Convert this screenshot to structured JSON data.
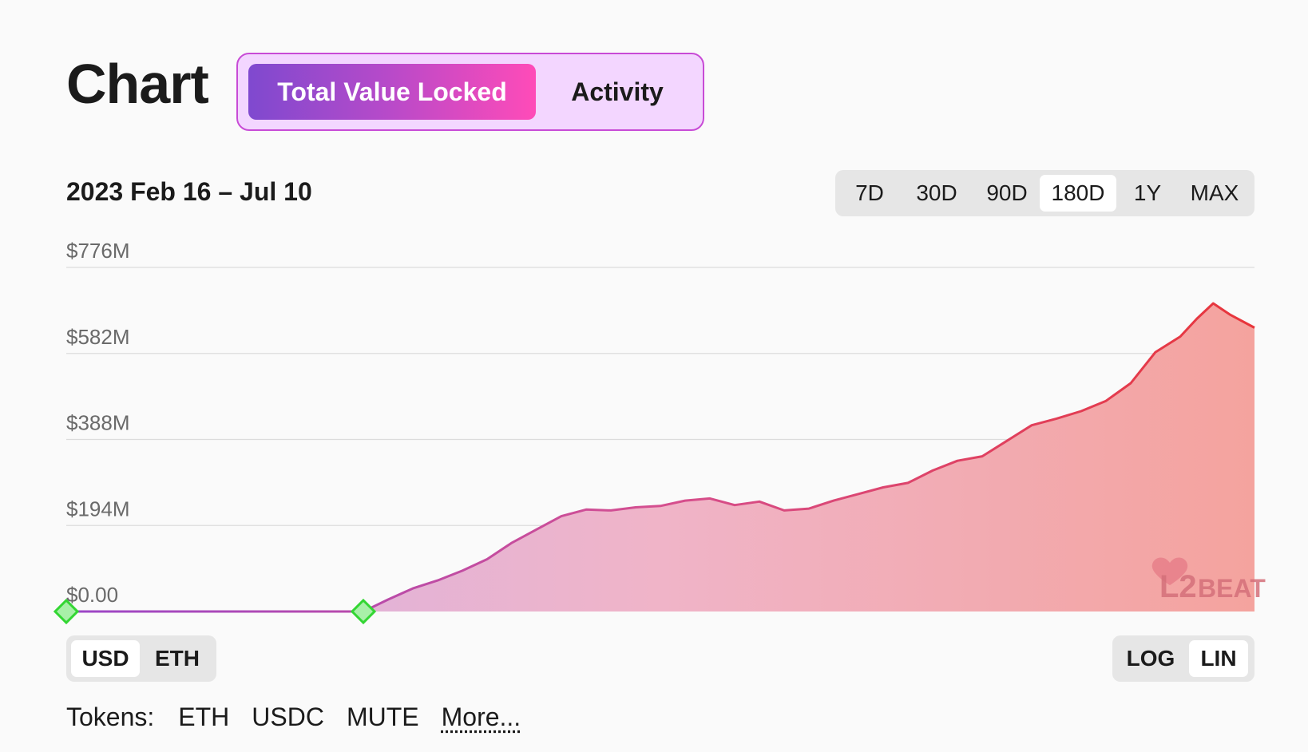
{
  "header": {
    "title": "Chart",
    "modes": [
      {
        "label": "Total Value Locked",
        "active": true
      },
      {
        "label": "Activity",
        "active": false
      }
    ]
  },
  "range": {
    "label": "2023 Feb 16 – Jul 10",
    "options": [
      "7D",
      "30D",
      "90D",
      "180D",
      "1Y",
      "MAX"
    ],
    "selected": "180D"
  },
  "units": {
    "options": [
      "USD",
      "ETH"
    ],
    "selected": "USD"
  },
  "scale": {
    "options": [
      "LOG",
      "LIN"
    ],
    "selected": "LIN"
  },
  "tokens": {
    "label": "Tokens:",
    "items": [
      "ETH",
      "USDC",
      "MUTE"
    ],
    "more": "More..."
  },
  "colors": {
    "accent_start": "#7f49cf",
    "accent_end": "#ff4bb8",
    "line_start": "#9b46c7",
    "line_end": "#e8353a",
    "marker": "#33d633"
  },
  "logo": "L2BEAT",
  "chart_data": {
    "type": "area",
    "title": "",
    "xlabel": "",
    "ylabel": "",
    "x_range": [
      "2023-02-16",
      "2023-07-10"
    ],
    "ylim": [
      0,
      776
    ],
    "y_unit": "$M",
    "y_ticks": [
      "$0.00",
      "$194M",
      "$388M",
      "$582M",
      "$776M"
    ],
    "grid": true,
    "markers": [
      {
        "date": "2023-02-16",
        "value": 0
      },
      {
        "date": "2023-03-24",
        "value": 0
      }
    ],
    "series": [
      {
        "x": [
          "2023-02-16",
          "2023-02-26",
          "2023-03-08",
          "2023-03-18",
          "2023-03-24",
          "2023-03-27",
          "2023-03-30",
          "2023-04-02",
          "2023-04-05",
          "2023-04-08",
          "2023-04-11",
          "2023-04-14",
          "2023-04-17",
          "2023-04-20",
          "2023-04-23",
          "2023-04-26",
          "2023-04-29",
          "2023-05-02",
          "2023-05-05",
          "2023-05-08",
          "2023-05-11",
          "2023-05-14",
          "2023-05-17",
          "2023-05-20",
          "2023-05-23",
          "2023-05-26",
          "2023-05-29",
          "2023-06-01",
          "2023-06-04",
          "2023-06-07",
          "2023-06-10",
          "2023-06-13",
          "2023-06-16",
          "2023-06-19",
          "2023-06-22",
          "2023-06-25",
          "2023-06-28",
          "2023-07-01",
          "2023-07-03",
          "2023-07-05",
          "2023-07-07",
          "2023-07-10"
        ],
        "values": [
          0,
          0,
          0,
          0,
          0,
          27,
          52,
          70,
          92,
          118,
          155,
          185,
          215,
          230,
          228,
          235,
          238,
          250,
          255,
          240,
          248,
          228,
          232,
          250,
          265,
          280,
          290,
          318,
          340,
          350,
          385,
          420,
          435,
          452,
          475,
          515,
          585,
          620,
          660,
          695,
          670,
          640
        ]
      }
    ]
  }
}
